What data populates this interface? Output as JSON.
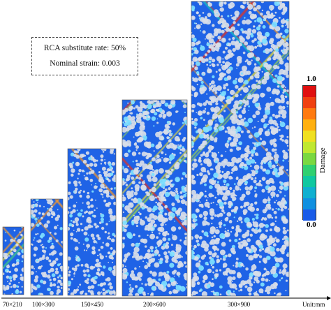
{
  "figure": {
    "info_box": {
      "line1": "RCA substitute rate: 50%",
      "line2": "Nominal strain: 0.003"
    },
    "colorbar": {
      "label": "Damage",
      "max_label": "1.0",
      "min_label": "0.0",
      "colors": [
        "#e01010",
        "#f04010",
        "#ff7a10",
        "#ffb010",
        "#f0e020",
        "#c0e830",
        "#7ad840",
        "#30d070",
        "#10c8a0",
        "#10b0d0",
        "#1090e0",
        "#1a5ce8"
      ]
    },
    "specimens": [
      {
        "label": "70×210"
      },
      {
        "label": "100×300"
      },
      {
        "label": "150×450"
      },
      {
        "label": "200×600"
      },
      {
        "label": "300×900"
      }
    ],
    "unit_label": "Unit:mm"
  }
}
